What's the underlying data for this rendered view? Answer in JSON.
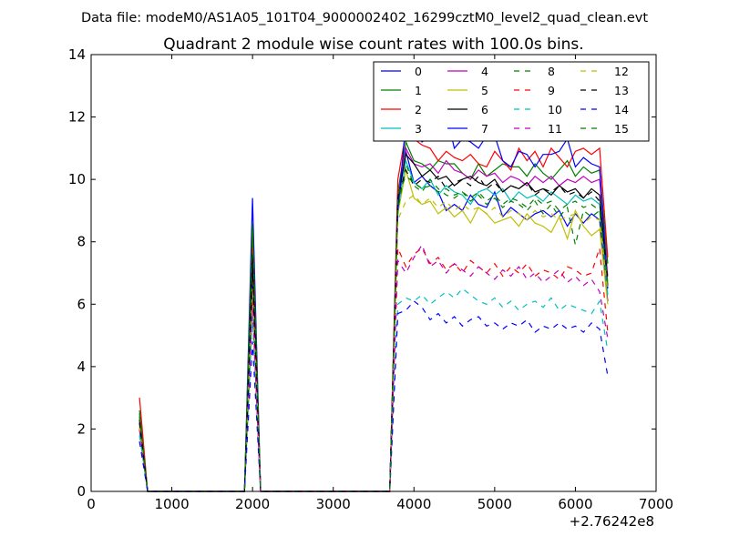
{
  "figure": {
    "suptitle": "Data file: modeM0/AS1A05_101T04_9000002402_16299cztM0_level2_quad_clean.evt"
  },
  "chart_data": {
    "type": "line",
    "title": "Quadrant 2 module wise count rates with 100.0s bins.",
    "xlabel": "",
    "ylabel": "",
    "x_offset_label": "+2.76242e8",
    "xlim": [
      0,
      7000
    ],
    "ylim": [
      0,
      14
    ],
    "xticks": [
      0,
      1000,
      2000,
      3000,
      4000,
      5000,
      6000,
      7000
    ],
    "yticks": [
      0,
      2,
      4,
      6,
      8,
      10,
      12,
      14
    ],
    "grid": false,
    "legend_position": "top-right",
    "x": [
      600,
      700,
      800,
      1900,
      2000,
      2100,
      2200,
      3700,
      3800,
      3900,
      4000,
      4100,
      4200,
      4300,
      4400,
      4500,
      4600,
      4700,
      4800,
      4900,
      5000,
      5100,
      5200,
      5300,
      5400,
      5500,
      5600,
      5700,
      5800,
      5900,
      6000,
      6100,
      6200,
      6300,
      6400
    ],
    "series": [
      {
        "name": "0",
        "color": "#0000ff",
        "dash": "solid",
        "values": [
          2.2,
          0,
          0,
          0,
          9.4,
          0,
          0,
          0,
          9.2,
          10.9,
          9.9,
          10.1,
          9.8,
          9.6,
          9.0,
          9.2,
          9.0,
          9.5,
          9.2,
          9.1,
          9.6,
          8.8,
          9.1,
          8.9,
          8.7,
          8.9,
          9.0,
          8.8,
          9.0,
          8.5,
          8.9,
          8.6,
          8.9,
          8.7,
          6.1
        ]
      },
      {
        "name": "1",
        "color": "#008000",
        "dash": "solid",
        "values": [
          2.6,
          0,
          0,
          0,
          8.5,
          0,
          0,
          0,
          9.6,
          11.2,
          10.6,
          10.5,
          10.3,
          10.6,
          10.5,
          10.5,
          10.2,
          10.0,
          10.5,
          10.1,
          10.3,
          10.5,
          10.4,
          10.4,
          10.1,
          10.5,
          10.2,
          10.0,
          10.3,
          10.6,
          10.1,
          10.4,
          10.2,
          10.3,
          7.3
        ]
      },
      {
        "name": "2",
        "color": "#ff0000",
        "dash": "solid",
        "values": [
          3.0,
          0,
          0,
          0,
          8.1,
          0,
          0,
          0,
          10.0,
          11.5,
          11.3,
          11.1,
          11.0,
          10.6,
          10.9,
          10.7,
          10.6,
          10.8,
          10.5,
          10.4,
          10.9,
          10.6,
          10.3,
          11.0,
          10.6,
          10.9,
          10.4,
          11.0,
          10.7,
          10.4,
          10.9,
          11.0,
          10.8,
          11.0,
          7.5
        ]
      },
      {
        "name": "3",
        "color": "#00bfbf",
        "dash": "solid",
        "values": [
          2.4,
          0,
          0,
          0,
          7.5,
          0,
          0,
          0,
          9.0,
          10.6,
          9.9,
          9.7,
          10.0,
          9.5,
          9.8,
          9.6,
          9.5,
          9.2,
          9.6,
          9.7,
          9.5,
          9.7,
          9.3,
          9.6,
          9.4,
          9.5,
          9.3,
          9.6,
          9.4,
          9.2,
          9.5,
          9.3,
          9.4,
          9.2,
          6.3
        ]
      },
      {
        "name": "4",
        "color": "#bf00bf",
        "dash": "solid",
        "values": [
          2.3,
          0,
          0,
          0,
          7.2,
          0,
          0,
          0,
          9.3,
          11.0,
          10.5,
          10.4,
          10.5,
          10.2,
          10.6,
          10.3,
          10.2,
          10.0,
          10.3,
          10.1,
          10.2,
          9.9,
          10.1,
          10.0,
          9.8,
          10.1,
          9.9,
          10.1,
          9.8,
          10.0,
          9.9,
          10.1,
          9.9,
          10.0,
          6.9
        ]
      },
      {
        "name": "5",
        "color": "#bfbf00",
        "dash": "solid",
        "values": [
          2.1,
          0,
          0,
          0,
          7.0,
          0,
          0,
          0,
          8.9,
          10.3,
          9.4,
          9.2,
          9.3,
          8.9,
          9.1,
          8.8,
          9.0,
          8.6,
          9.1,
          8.9,
          8.6,
          8.7,
          8.8,
          8.5,
          8.9,
          8.6,
          8.5,
          8.3,
          8.8,
          8.1,
          9.0,
          8.5,
          8.2,
          8.4,
          6.0
        ]
      },
      {
        "name": "6",
        "color": "#000000",
        "dash": "solid",
        "values": [
          2.3,
          0,
          0,
          0,
          7.6,
          0,
          0,
          0,
          9.4,
          10.8,
          10.5,
          10.1,
          10.3,
          10.0,
          10.1,
          9.8,
          10.0,
          10.1,
          9.9,
          9.8,
          10.0,
          9.6,
          9.8,
          9.7,
          9.9,
          9.6,
          9.7,
          9.5,
          9.8,
          9.6,
          9.7,
          9.4,
          9.7,
          9.5,
          6.6
        ]
      },
      {
        "name": "7",
        "color": "#0000ff",
        "dash": "solid",
        "values": [
          2.0,
          0,
          0,
          0,
          6.6,
          0,
          0,
          0,
          9.0,
          11.8,
          11.6,
          11.2,
          11.4,
          11.7,
          12.1,
          11.0,
          11.3,
          11.2,
          11.0,
          11.4,
          11.4,
          10.6,
          10.4,
          10.9,
          10.8,
          10.4,
          10.8,
          10.8,
          10.9,
          11.3,
          10.4,
          10.7,
          10.5,
          10.4,
          6.5
        ]
      },
      {
        "name": "8",
        "color": "#008000",
        "dash": "dashed",
        "values": [
          2.5,
          0,
          0,
          0,
          8.2,
          0,
          0,
          0,
          9.0,
          10.5,
          9.8,
          9.6,
          10.0,
          9.7,
          9.5,
          9.4,
          9.6,
          9.3,
          9.5,
          9.2,
          9.4,
          9.1,
          9.3,
          9.2,
          9.0,
          9.3,
          8.9,
          9.2,
          8.8,
          9.1,
          7.9,
          9.0,
          8.8,
          9.0,
          6.6
        ]
      },
      {
        "name": "9",
        "color": "#ff0000",
        "dash": "dashed",
        "values": [
          2.0,
          0,
          0,
          0,
          6.1,
          0,
          0,
          0,
          7.8,
          7.2,
          7.6,
          7.8,
          7.3,
          7.5,
          7.1,
          7.3,
          7.0,
          7.4,
          7.2,
          7.0,
          7.3,
          6.9,
          7.2,
          7.0,
          7.3,
          6.9,
          7.1,
          7.0,
          6.8,
          7.2,
          7.1,
          6.9,
          7.0,
          7.8,
          5.1
        ]
      },
      {
        "name": "10",
        "color": "#00bfbf",
        "dash": "dashed",
        "values": [
          1.8,
          0,
          0,
          0,
          5.6,
          0,
          0,
          0,
          6.0,
          6.2,
          6.1,
          6.3,
          6.0,
          6.2,
          6.4,
          6.2,
          6.5,
          6.3,
          6.1,
          6.0,
          6.2,
          5.9,
          6.1,
          5.8,
          6.0,
          6.1,
          5.9,
          6.2,
          5.8,
          6.0,
          5.9,
          5.8,
          5.7,
          6.1,
          4.5
        ]
      },
      {
        "name": "11",
        "color": "#bf00bf",
        "dash": "dashed",
        "values": [
          2.0,
          0,
          0,
          0,
          5.9,
          0,
          0,
          0,
          7.4,
          7.0,
          7.5,
          7.9,
          7.2,
          7.4,
          7.0,
          7.3,
          7.1,
          6.9,
          7.2,
          7.0,
          6.8,
          7.1,
          6.9,
          7.2,
          6.8,
          7.0,
          6.7,
          6.9,
          7.1,
          6.7,
          6.9,
          6.6,
          6.8,
          6.4,
          4.9
        ]
      },
      {
        "name": "12",
        "color": "#bfbf00",
        "dash": "dashed",
        "values": [
          2.1,
          0,
          0,
          0,
          6.5,
          0,
          0,
          0,
          8.7,
          9.3,
          9.5,
          9.2,
          9.4,
          9.1,
          9.3,
          9.0,
          9.2,
          9.0,
          9.1,
          8.9,
          9.1,
          8.8,
          9.0,
          8.9,
          8.7,
          9.0,
          8.8,
          8.9,
          8.7,
          8.8,
          8.9,
          8.6,
          8.8,
          8.7,
          6.4
        ]
      },
      {
        "name": "13",
        "color": "#000000",
        "dash": "dashed",
        "values": [
          2.2,
          0,
          0,
          0,
          7.1,
          0,
          0,
          0,
          9.4,
          10.3,
          9.8,
          10.0,
          9.9,
          10.1,
          9.7,
          9.9,
          10.0,
          9.8,
          10.1,
          9.7,
          9.9,
          9.6,
          9.8,
          9.7,
          9.9,
          9.5,
          9.7,
          9.6,
          9.8,
          9.5,
          9.6,
          9.4,
          9.6,
          9.3,
          6.8
        ]
      },
      {
        "name": "14",
        "color": "#0000ff",
        "dash": "dashed",
        "values": [
          1.6,
          0,
          0,
          0,
          4.8,
          0,
          0,
          0,
          5.7,
          5.8,
          6.1,
          5.9,
          5.5,
          5.7,
          5.4,
          5.6,
          5.3,
          5.5,
          5.6,
          5.3,
          5.4,
          5.2,
          5.4,
          5.3,
          5.5,
          5.1,
          5.3,
          5.2,
          5.4,
          5.2,
          5.3,
          5.1,
          5.4,
          5.2,
          3.7
        ]
      },
      {
        "name": "15",
        "color": "#008000",
        "dash": "dashed",
        "values": [
          2.4,
          0,
          0,
          0,
          8.6,
          0,
          0,
          0,
          9.5,
          10.1,
          9.9,
          9.7,
          9.8,
          9.6,
          9.7,
          9.5,
          9.6,
          9.4,
          9.6,
          9.3,
          9.5,
          9.2,
          9.4,
          9.3,
          9.1,
          9.4,
          9.2,
          9.3,
          9.0,
          9.2,
          9.3,
          9.1,
          9.2,
          9.0,
          6.7
        ]
      }
    ]
  }
}
